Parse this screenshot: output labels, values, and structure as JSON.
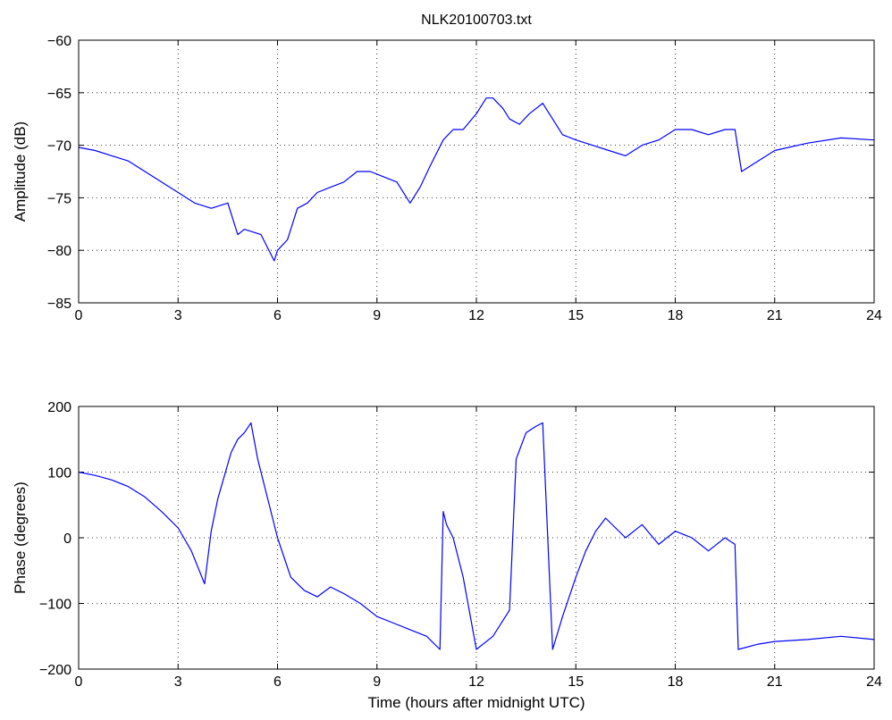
{
  "chart_data": [
    {
      "type": "line",
      "title": "NLK20100703.txt",
      "xlabel": "",
      "ylabel": "Amplitude (dB)",
      "xlim": [
        0,
        24
      ],
      "ylim": [
        -85,
        -60
      ],
      "xticks": [
        "0",
        "3",
        "6",
        "9",
        "12",
        "15",
        "18",
        "21",
        "24"
      ],
      "yticks": [
        "−60",
        "−65",
        "−70",
        "−75",
        "−80",
        "−85"
      ],
      "grid": true,
      "line_color": "#0000ff",
      "series": [
        {
          "x": [
            0,
            0.5,
            1,
            1.5,
            2,
            2.5,
            3,
            3.5,
            4,
            4.5,
            4.8,
            5,
            5.5,
            5.9,
            6,
            6.3,
            6.6,
            6.9,
            7.2,
            7.6,
            8,
            8.4,
            8.8,
            9.2,
            9.6,
            10,
            10.3,
            10.6,
            11,
            11.3,
            11.6,
            12,
            12.3,
            12.5,
            12.8,
            13,
            13.3,
            13.6,
            14,
            14.3,
            14.6,
            15,
            15.5,
            16,
            16.5,
            17,
            17.5,
            18,
            18.5,
            19,
            19.5,
            19.8,
            20,
            20.5,
            21,
            22,
            23,
            24
          ],
          "y": [
            -70.2,
            -70.5,
            -71,
            -71.5,
            -72.5,
            -73.5,
            -74.5,
            -75.5,
            -76,
            -75.5,
            -78.5,
            -78,
            -78.5,
            -81,
            -80,
            -79,
            -76,
            -75.5,
            -74.5,
            -74,
            -73.5,
            -72.5,
            -72.5,
            -73,
            -73.5,
            -75.5,
            -74,
            -72,
            -69.5,
            -68.5,
            -68.5,
            -67,
            -65.5,
            -65.5,
            -66.5,
            -67.5,
            -68,
            -67,
            -66,
            -67.5,
            -69,
            -69.5,
            -70,
            -70.5,
            -71,
            -70,
            -69.5,
            -68.5,
            -68.5,
            -69,
            -68.5,
            -68.5,
            -72.5,
            -71.5,
            -70.5,
            -69.8,
            -69.3,
            -69.5
          ]
        }
      ]
    },
    {
      "type": "line",
      "title": "",
      "xlabel": "Time (hours after midnight UTC)",
      "ylabel": "Phase (degrees)",
      "xlim": [
        0,
        24
      ],
      "ylim": [
        -200,
        200
      ],
      "xticks": [
        "0",
        "3",
        "6",
        "9",
        "12",
        "15",
        "18",
        "21",
        "24"
      ],
      "yticks": [
        "200",
        "100",
        "0",
        "−100",
        "−200"
      ],
      "grid": true,
      "line_color": "#0000ff",
      "series": [
        {
          "x": [
            0,
            0.5,
            1,
            1.5,
            2,
            2.5,
            3,
            3.4,
            3.8,
            4.0,
            4.2,
            4.4,
            4.6,
            4.8,
            5.0,
            5.2,
            5.4,
            5.7,
            6,
            6.4,
            6.8,
            7.2,
            7.6,
            8,
            8.5,
            9,
            9.5,
            10,
            10.5,
            10.9,
            11.0,
            11.1,
            11.3,
            11.6,
            12,
            12.5,
            13.0,
            13.2,
            13.5,
            13.8,
            14.0,
            14.3,
            14.6,
            15,
            15.3,
            15.6,
            15.9,
            16.5,
            17,
            17.5,
            18,
            18.5,
            19,
            19.5,
            19.8,
            19.9,
            20.5,
            21,
            22,
            23,
            24
          ],
          "y": [
            100,
            95,
            88,
            78,
            62,
            40,
            15,
            -20,
            -70,
            10,
            60,
            95,
            130,
            150,
            160,
            175,
            120,
            60,
            0,
            -60,
            -80,
            -90,
            -75,
            -85,
            -100,
            -120,
            -130,
            -140,
            -150,
            -170,
            40,
            20,
            0,
            -60,
            -170,
            -150,
            -110,
            120,
            160,
            170,
            175,
            -170,
            -120,
            -60,
            -20,
            10,
            30,
            0,
            20,
            -10,
            10,
            0,
            -20,
            0,
            -10,
            -170,
            -162,
            -158,
            -155,
            -150,
            -155
          ]
        }
      ]
    }
  ]
}
